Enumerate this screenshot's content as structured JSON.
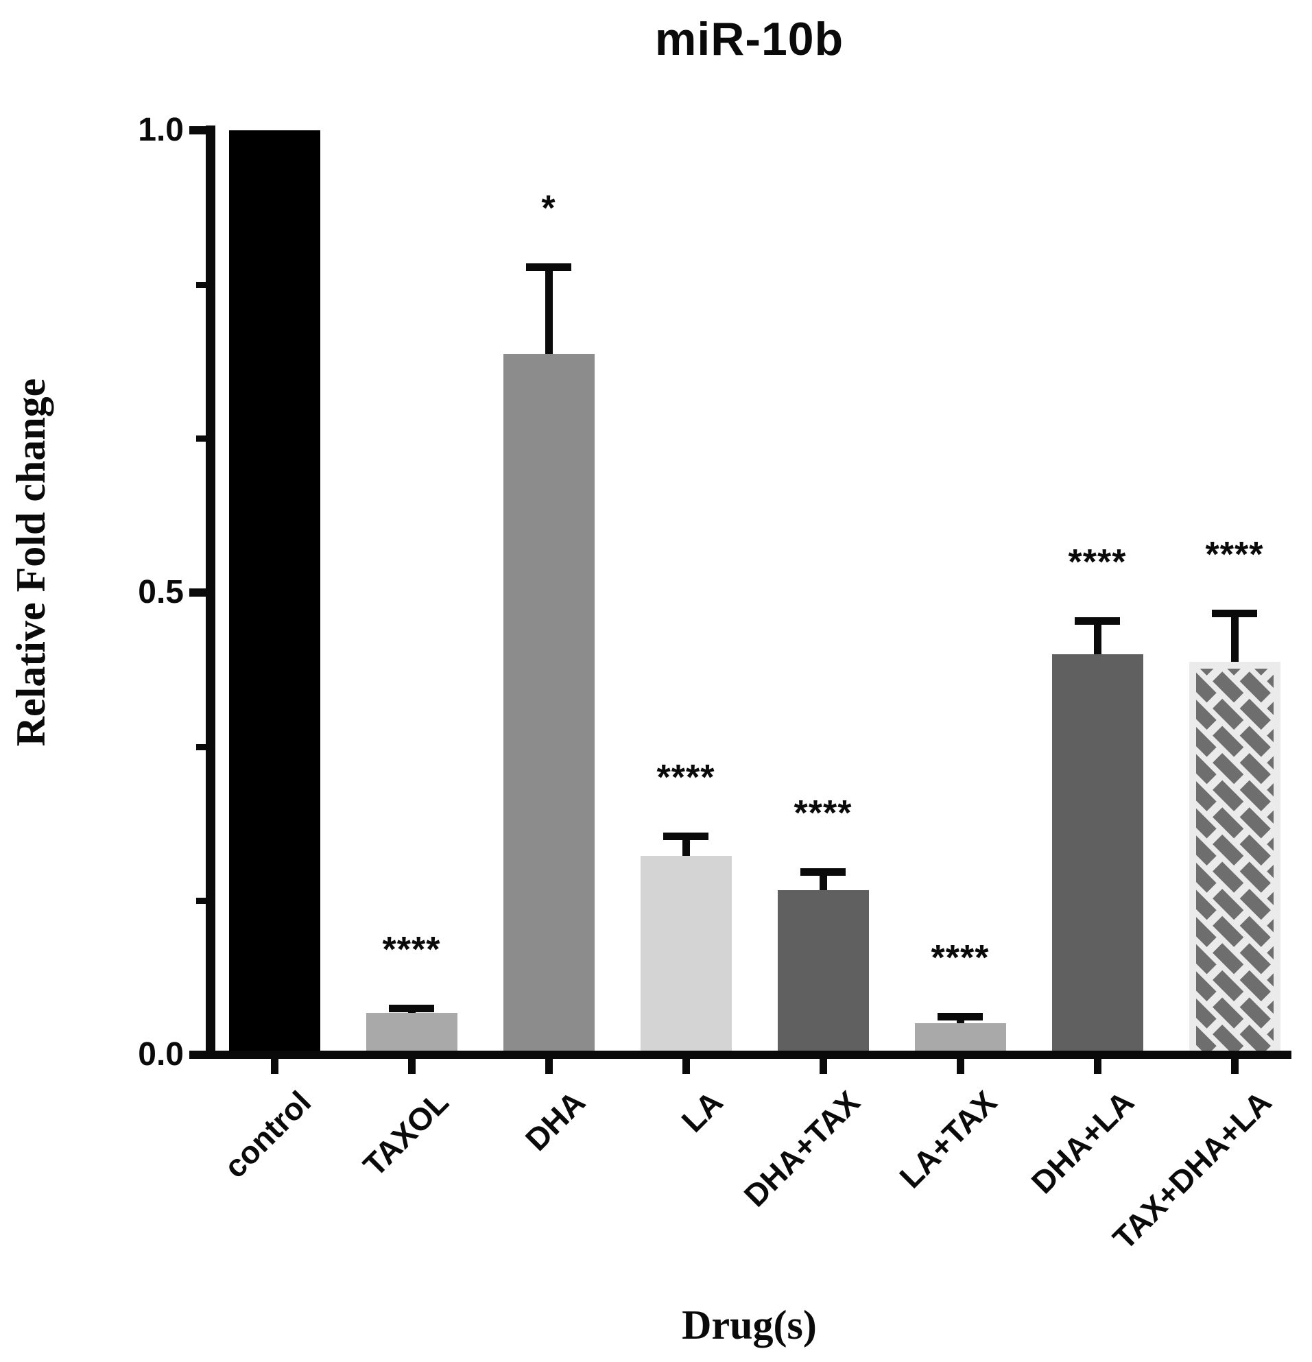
{
  "chart_data": {
    "type": "bar",
    "title": "miR-10b",
    "xlabel": "Drug(s)",
    "ylabel": "Relative Fold change",
    "ylim": [
      0,
      1.0
    ],
    "grid": false,
    "legend": "none",
    "yticks": [
      {
        "value": 0.0,
        "label": "0.0"
      },
      {
        "value": 0.5,
        "label": "0.5"
      },
      {
        "value": 1.0,
        "label": "1.0"
      }
    ],
    "minor_tick_values": [
      0.1667,
      0.3333,
      0.6667,
      0.8333
    ],
    "categories": [
      "control",
      "TAXOL",
      "DHA",
      "LA",
      "DHA+TAX",
      "LA+TAX",
      "DHA+LA",
      "TAX+DHA+LA"
    ],
    "values": [
      1.0,
      0.045,
      0.758,
      0.215,
      0.178,
      0.034,
      0.433,
      0.425
    ],
    "errors_plus": [
      null,
      0.005,
      0.094,
      0.021,
      0.019,
      0.007,
      0.036,
      0.052
    ],
    "significance": [
      "",
      "****",
      "*",
      "****",
      "****",
      "****",
      "****",
      "****"
    ],
    "bar_styles": [
      {
        "fill": "#000000",
        "pattern": "solid"
      },
      {
        "fill": "#a9a9a9",
        "pattern": "solid"
      },
      {
        "fill": "#8c8c8c",
        "pattern": "solid"
      },
      {
        "fill": "#d4d4d4",
        "pattern": "solid"
      },
      {
        "fill": "#606060",
        "pattern": "solid"
      },
      {
        "fill": "#a9a9a9",
        "pattern": "solid"
      },
      {
        "fill": "#606060",
        "pattern": "solid"
      },
      {
        "fill": "#ebebeb",
        "pattern": "diagonal-bricks",
        "pattern_color": "#6e6e6e"
      }
    ],
    "error_bar_color": "#0a0a0a",
    "text_color": "#0a0a0a"
  }
}
